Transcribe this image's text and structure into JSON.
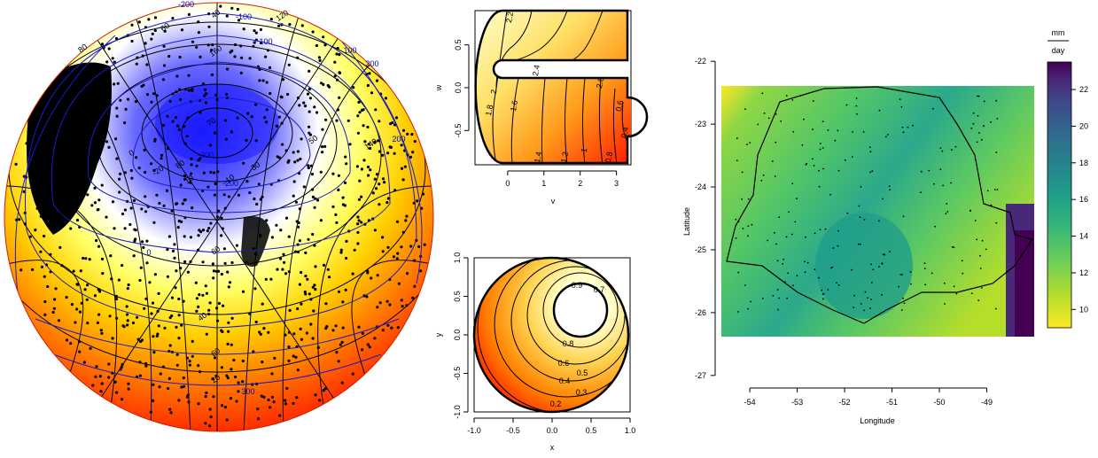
{
  "chart_data": [
    {
      "type": "heatmap",
      "panel": "sphere",
      "black_contour_labels": [
        "40",
        "60",
        "80",
        "100",
        "120",
        "140",
        "160",
        "20",
        "0",
        "-20",
        "10",
        "-10",
        "30",
        "50",
        "70",
        "80",
        "60",
        "20",
        "40",
        "60"
      ],
      "blue_contour_labels": [
        "-200",
        "-100",
        "-300",
        "-200",
        "0",
        "100",
        "200",
        "300",
        "100",
        "200"
      ],
      "colors": {
        "low": "#1a1aff",
        "mid": "#ffffff",
        "high": "#ff1a00"
      }
    },
    {
      "type": "heatmap",
      "panel": "c-shape",
      "xlabel": "v",
      "ylabel": "w",
      "x_ticks": [
        "0",
        "1",
        "2",
        "3"
      ],
      "y_ticks": [
        "-0.5",
        "0.0",
        "0.5"
      ],
      "xlim": [
        -0.9,
        3.4
      ],
      "ylim": [
        -0.9,
        0.9
      ],
      "contour_labels": [
        "2.2",
        "2.4",
        "2",
        "2.6",
        "1.8",
        "1.6",
        "1.4",
        "1.2",
        "1",
        "0.8",
        "0.6",
        "0.4"
      ]
    },
    {
      "type": "heatmap",
      "panel": "annulus",
      "xlabel": "x",
      "ylabel": "y",
      "x_ticks": [
        "-1.0",
        "-0.5",
        "0.0",
        "0.5",
        "1.0"
      ],
      "y_ticks": [
        "-1.0",
        "-0.5",
        "0.0",
        "0.5",
        "1.0"
      ],
      "xlim": [
        -1,
        1
      ],
      "ylim": [
        -1,
        1
      ],
      "contour_labels": [
        "0.7",
        "0.9",
        "0.8",
        "0.6",
        "0.5",
        "0.4",
        "0.3",
        "0.2"
      ]
    },
    {
      "type": "heatmap",
      "panel": "map",
      "xlabel": "Longitude",
      "ylabel": "Latitude",
      "x_ticks": [
        "-54",
        "-53",
        "-52",
        "-51",
        "-50",
        "-49"
      ],
      "y_ticks": [
        "-22",
        "-23",
        "-24",
        "-25",
        "-26",
        "-27"
      ],
      "xlim": [
        -54.6,
        -48.0
      ],
      "ylim": [
        -27.2,
        -21.8
      ],
      "colorbar": {
        "unit_top": "mm",
        "unit_bottom": "day",
        "ticks": [
          "22",
          "20",
          "18",
          "16",
          "14",
          "12",
          "10"
        ],
        "range": [
          9,
          23.5
        ],
        "colors": [
          "#fde725",
          "#b5de2b",
          "#6ece58",
          "#35b779",
          "#1f9e89",
          "#26828e",
          "#31688e",
          "#3e4989",
          "#482878",
          "#440154"
        ]
      }
    }
  ]
}
